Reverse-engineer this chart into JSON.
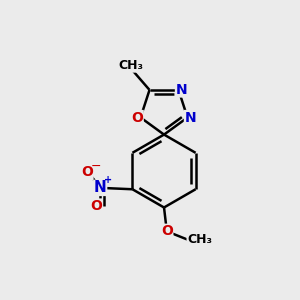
{
  "background_color": "#ebebeb",
  "bond_color": "#000000",
  "bond_width": 1.8,
  "atom_colors": {
    "C": "#000000",
    "N": "#0000cc",
    "O": "#cc0000"
  },
  "font_size": 10,
  "fig_size": [
    3.0,
    3.0
  ],
  "dpi": 100,
  "xlim": [
    0,
    10
  ],
  "ylim": [
    0,
    10.5
  ]
}
